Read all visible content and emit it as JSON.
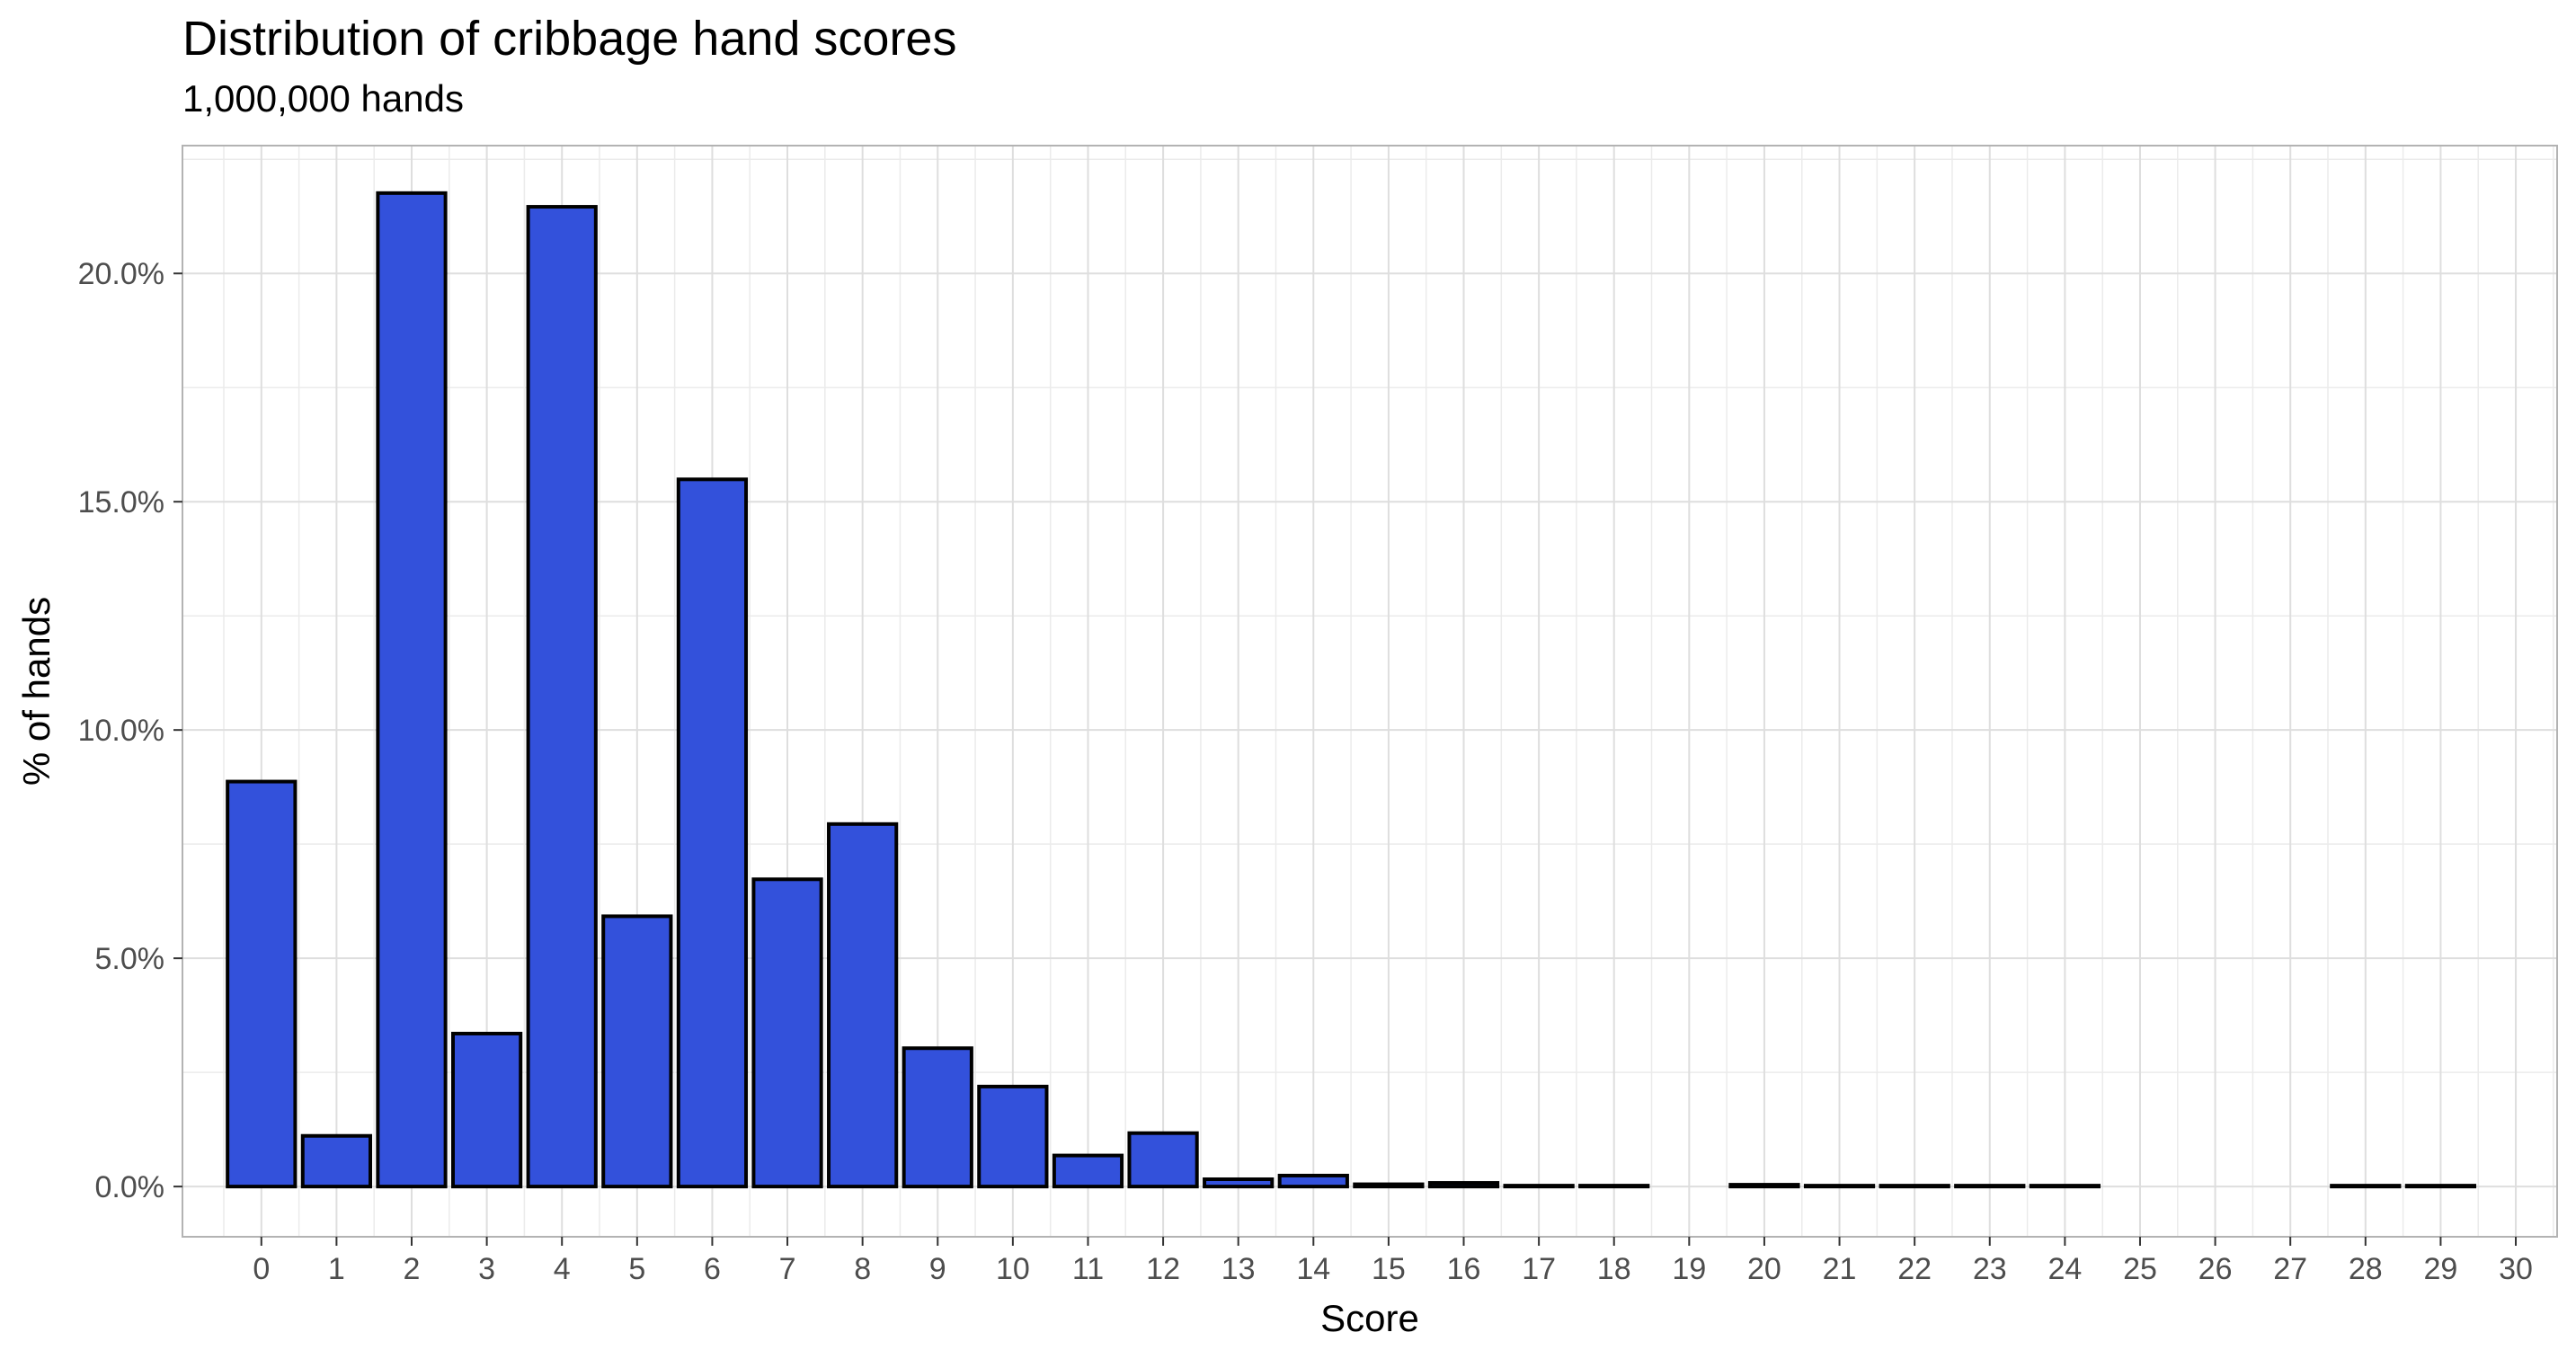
{
  "chart_data": {
    "type": "bar",
    "title": "Distribution of cribbage hand scores",
    "subtitle": "1,000,000 hands",
    "xlabel": "Score",
    "ylabel": "% of hands",
    "categories": [
      "0",
      "1",
      "2",
      "3",
      "4",
      "5",
      "6",
      "7",
      "8",
      "9",
      "10",
      "11",
      "12",
      "13",
      "14",
      "15",
      "16",
      "17",
      "18",
      "19",
      "20",
      "21",
      "22",
      "23",
      "24",
      "25",
      "26",
      "27",
      "28",
      "29",
      "30"
    ],
    "values": [
      8.87,
      1.11,
      21.76,
      3.35,
      21.46,
      5.92,
      15.49,
      6.73,
      7.94,
      3.03,
      2.19,
      0.68,
      1.17,
      0.16,
      0.24,
      0.05,
      0.08,
      0.02,
      0.02,
      null,
      0.04,
      0.01,
      0.01,
      0.01,
      0.01,
      null,
      null,
      null,
      0.005,
      0.005,
      null
    ],
    "yticks": [
      0,
      5,
      10,
      15,
      20
    ],
    "ytick_labels": [
      "0.0%",
      "5.0%",
      "10.0%",
      "15.0%",
      "20.0%"
    ],
    "ylim": [
      -1.1,
      22.8
    ],
    "grid": true,
    "bar_fill": "#3351DB",
    "bar_outline": "#000000",
    "grid_color": "#DEDEDE",
    "panel_border": "#B3B3B3"
  }
}
